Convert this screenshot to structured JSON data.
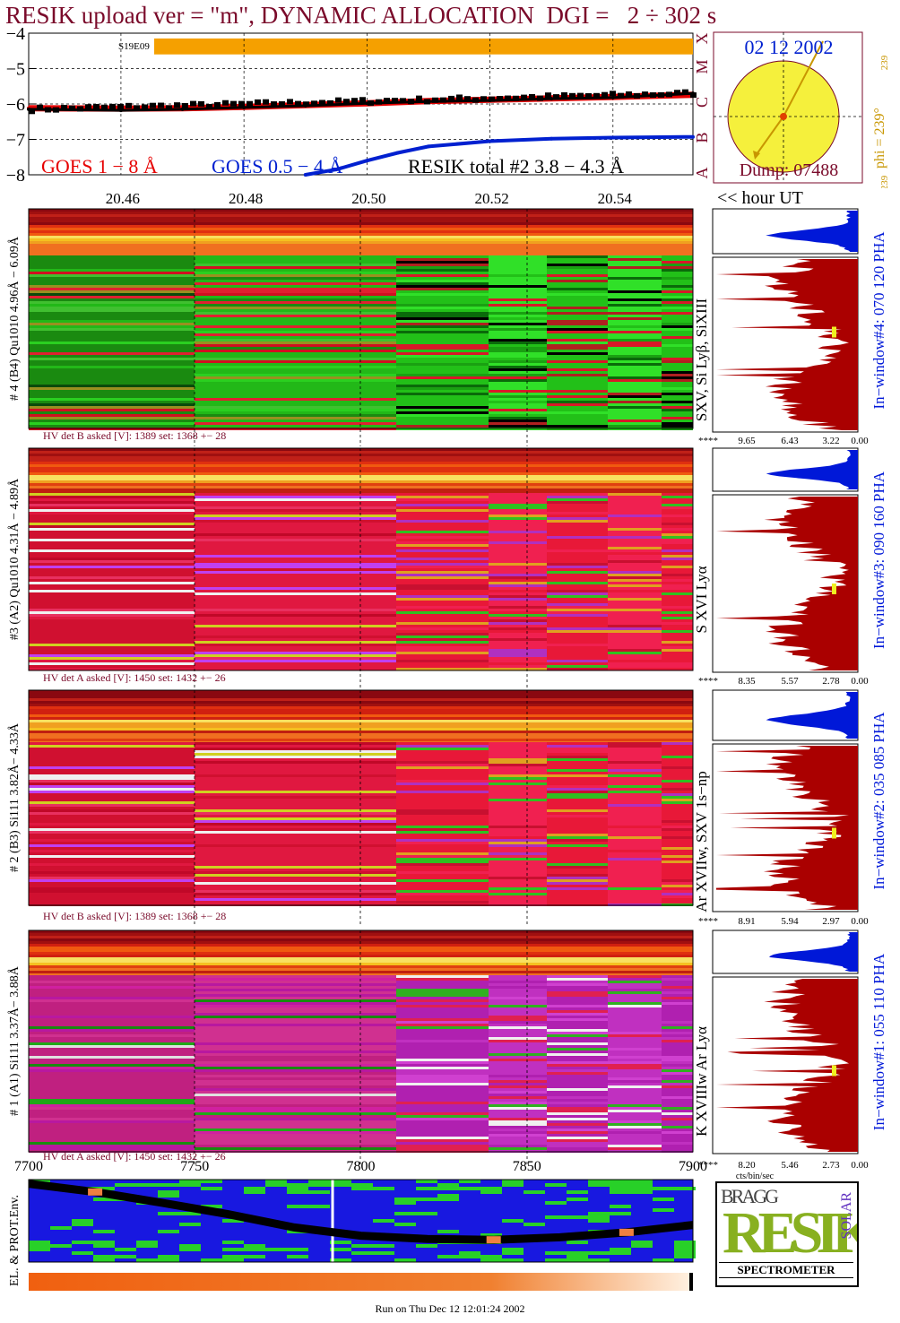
{
  "header": {
    "title": "RESIK upload ver = \"m\", DYNAMIC ALLOCATION  DGI =   2 ÷ 302 s"
  },
  "colors": {
    "title": "#7a0a2a",
    "goes_long": "#e60000",
    "goes_short": "#0020d0",
    "resik_total": "#000000",
    "pha_fill": "#aa0000",
    "pha_top_fill": "#0018d8",
    "hv_text": "#7a0a2a",
    "sun_disk": "#f5f03c",
    "orbit_label": "#c89600",
    "band_marker": "#f5a000"
  },
  "chart_data": [
    {
      "type": "line",
      "name": "goes-lightcurve",
      "band_marker_label": "S19E09",
      "y_tick_labels": [
        "−4",
        "−5",
        "−6",
        "−7",
        "−8"
      ],
      "ylim": [
        -8,
        -4
      ],
      "right_axis_labels": [
        "X",
        "M",
        "C",
        "B",
        "A"
      ],
      "x_tick_labels": [
        "20.46",
        "20.48",
        "20.50",
        "20.52",
        "20.54"
      ],
      "xlim": [
        20.445,
        20.553
      ],
      "x_unit_label": "<< hour UT",
      "legend": [
        {
          "label": "GOES 1 − 8 Å",
          "color": "#e60000"
        },
        {
          "label": "GOES 0.5 − 4 Å",
          "color": "#0020d0"
        },
        {
          "label": "RESIK total #2  3.8 − 4.3 Å",
          "color": "#000000"
        }
      ],
      "series": [
        {
          "name": "GOES 1 − 8 Å",
          "x": [
            20.445,
            20.46,
            20.47,
            20.48,
            20.49,
            20.5,
            20.51,
            20.52,
            20.53,
            20.54,
            20.553
          ],
          "y": [
            -6.12,
            -6.13,
            -6.12,
            -6.08,
            -6.03,
            -5.98,
            -5.92,
            -5.88,
            -5.84,
            -5.8,
            -5.74
          ]
        },
        {
          "name": "GOES 0.5 − 4 Å",
          "x": [
            20.49,
            20.495,
            20.5,
            20.505,
            20.51,
            20.52,
            20.53,
            20.54,
            20.553
          ],
          "y": [
            -8.0,
            -7.85,
            -7.6,
            -7.38,
            -7.2,
            -7.05,
            -6.98,
            -6.95,
            -6.93
          ]
        },
        {
          "name": "RESIK total #2  3.8 − 4.3 Å",
          "x": [
            20.445,
            20.46,
            20.47,
            20.48,
            20.49,
            20.5,
            20.51,
            20.52,
            20.53,
            20.54,
            20.553
          ],
          "y": [
            -6.15,
            -6.18,
            -6.15,
            -6.1,
            -6.05,
            -5.98,
            -5.93,
            -5.9,
            -5.85,
            -5.82,
            -5.7
          ]
        }
      ]
    },
    {
      "type": "scatter",
      "name": "sun-disk",
      "date_label": "02 12 2002",
      "dump_label": "Dump: 07488",
      "phi_label": "phi = 239°",
      "phi_small_label": "239",
      "phi_bottom_label": "239",
      "phi_deg": 239
    },
    {
      "type": "heatmap",
      "name": "spectra-channels",
      "channels": [
        {
          "id": "ch4",
          "label": "# 4 (B4) Qu1010  4.96Å − 6.09Å",
          "line_label": "SXV,  Si Lyβ, SiXIII",
          "hv_label": "HV det B asked [V]:  1389 set:  1368 +−   28",
          "window_label": "In−window#4:  070 120 PHA",
          "pha_ticks": [
            "****",
            "9.65",
            "6.43",
            "3.22",
            "0.00"
          ],
          "scheme": "green"
        },
        {
          "id": "ch3",
          "label": "#3 (A2) Qu1010  4.31Å − 4.89Å",
          "line_label": "S XVI Lyα",
          "hv_label": "HV det A asked [V]:  1450 set:  1432 +−   26",
          "window_label": "In−window#3:  090 160 PHA",
          "pha_ticks": [
            "****",
            "8.35",
            "5.57",
            "2.78",
            "0.00"
          ],
          "scheme": "red"
        },
        {
          "id": "ch2",
          "label": "# 2 (B3) Si111  3.82Å− 4.33Å",
          "line_label": "Ar XVIIw,  SXV 1s−np",
          "hv_label": "HV det B asked [V]:  1389 set:  1368 +−   28",
          "window_label": "In−window#2:  035 085 PHA",
          "pha_ticks": [
            "****",
            "8.91",
            "5.94",
            "2.97",
            "0.00"
          ],
          "scheme": "red"
        },
        {
          "id": "ch1",
          "label": "# 1 (A1) Si111  3.37Å− 3.88Å",
          "line_label": "K XVIIIw   Ar Lyα",
          "hv_label": "HV det A asked [V]:  1450 set:  1432 +−   26",
          "window_label": "In−window#1:  055 110 PHA",
          "pha_ticks": [
            "****",
            "8.20",
            "5.46",
            "2.73",
            "0.00"
          ],
          "pha_unit": "cts/bin/sec",
          "scheme": "magenta"
        }
      ]
    },
    {
      "type": "line",
      "name": "orbit-environment",
      "label": "EL. & PROT.Env.",
      "x_tick_labels": [
        "7700",
        "7750",
        "7800",
        "7850",
        "7900"
      ],
      "xlim": [
        7700,
        7900
      ],
      "track_x": [
        7700,
        7720,
        7740,
        7760,
        7780,
        7800,
        7820,
        7840,
        7860,
        7880,
        7900
      ],
      "track_y": [
        0.95,
        0.85,
        0.72,
        0.58,
        0.42,
        0.32,
        0.28,
        0.27,
        0.3,
        0.36,
        0.45
      ]
    }
  ],
  "logo": {
    "text": "RESIK",
    "spectrometer_label": "SPECTROMETER",
    "bragg_label": "BRAGG",
    "solar_label": "SOLAR"
  },
  "footer": {
    "run_label": "Run on Thu Dec 12 12:01:24 2002"
  }
}
